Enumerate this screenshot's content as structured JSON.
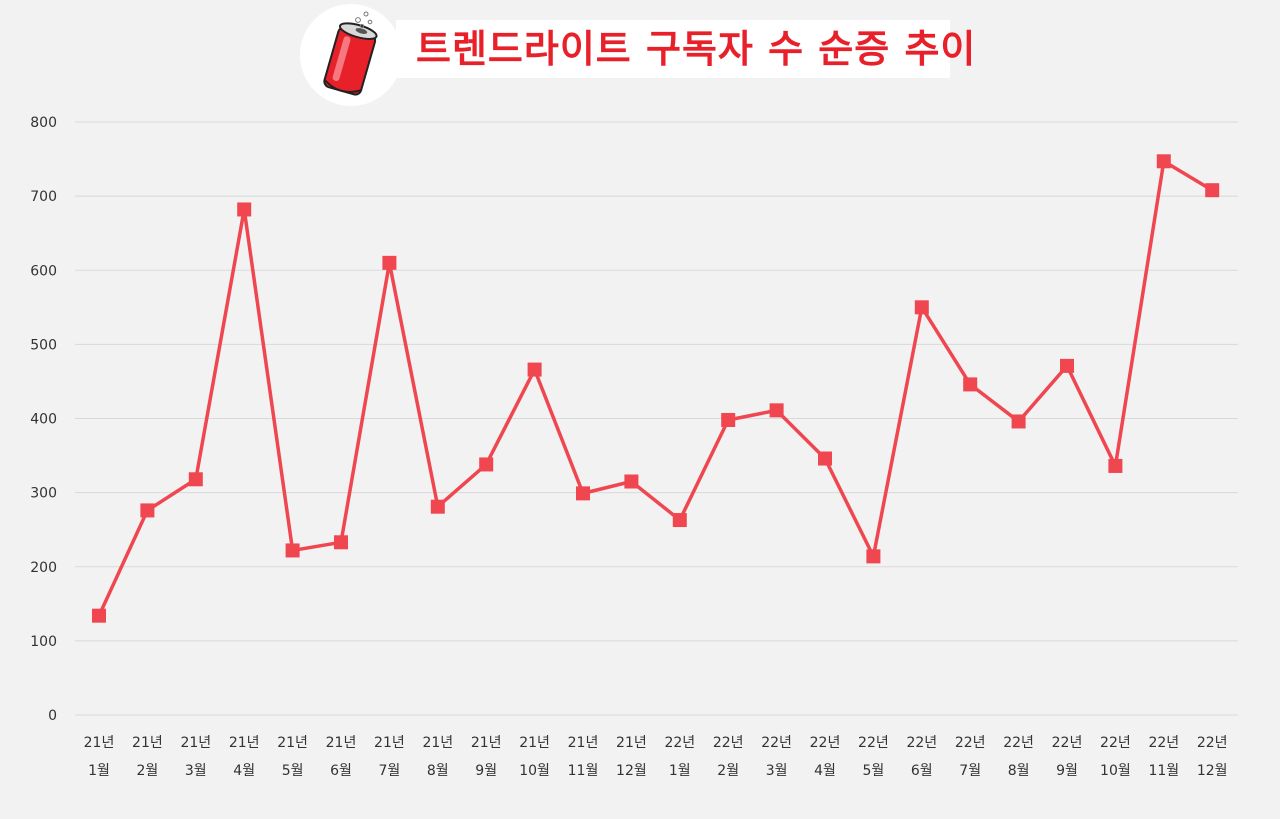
{
  "header": {
    "title": "트렌드라이트 구독자 수 순증 추이",
    "logo_icon": "soda-can-icon"
  },
  "colors": {
    "accent": "#e8202a",
    "series": "#ef4650",
    "grid": "#d9d9d9",
    "background": "#f2f2f2"
  },
  "chart_data": {
    "type": "line",
    "title": "트렌드라이트 구독자 수 순증 추이",
    "xlabel": "",
    "ylabel": "",
    "ylim": [
      0,
      800
    ],
    "yticks": [
      0,
      100,
      200,
      300,
      400,
      500,
      600,
      700,
      800
    ],
    "grid": true,
    "legend": "none",
    "categories": [
      {
        "year": "21년",
        "month": "1월"
      },
      {
        "year": "21년",
        "month": "2월"
      },
      {
        "year": "21년",
        "month": "3월"
      },
      {
        "year": "21년",
        "month": "4월"
      },
      {
        "year": "21년",
        "month": "5월"
      },
      {
        "year": "21년",
        "month": "6월"
      },
      {
        "year": "21년",
        "month": "7월"
      },
      {
        "year": "21년",
        "month": "8월"
      },
      {
        "year": "21년",
        "month": "9월"
      },
      {
        "year": "21년",
        "month": "10월"
      },
      {
        "year": "21년",
        "month": "11월"
      },
      {
        "year": "21년",
        "month": "12월"
      },
      {
        "year": "22년",
        "month": "1월"
      },
      {
        "year": "22년",
        "month": "2월"
      },
      {
        "year": "22년",
        "month": "3월"
      },
      {
        "year": "22년",
        "month": "4월"
      },
      {
        "year": "22년",
        "month": "5월"
      },
      {
        "year": "22년",
        "month": "6월"
      },
      {
        "year": "22년",
        "month": "7월"
      },
      {
        "year": "22년",
        "month": "8월"
      },
      {
        "year": "22년",
        "month": "9월"
      },
      {
        "year": "22년",
        "month": "10월"
      },
      {
        "year": "22년",
        "month": "11월"
      },
      {
        "year": "22년",
        "month": "12월"
      }
    ],
    "series": [
      {
        "values": [
          134,
          276,
          318,
          682,
          222,
          233,
          610,
          281,
          338,
          466,
          299,
          315,
          263,
          398,
          411,
          346,
          214,
          550,
          446,
          396,
          471,
          336,
          747,
          708
        ]
      }
    ]
  }
}
